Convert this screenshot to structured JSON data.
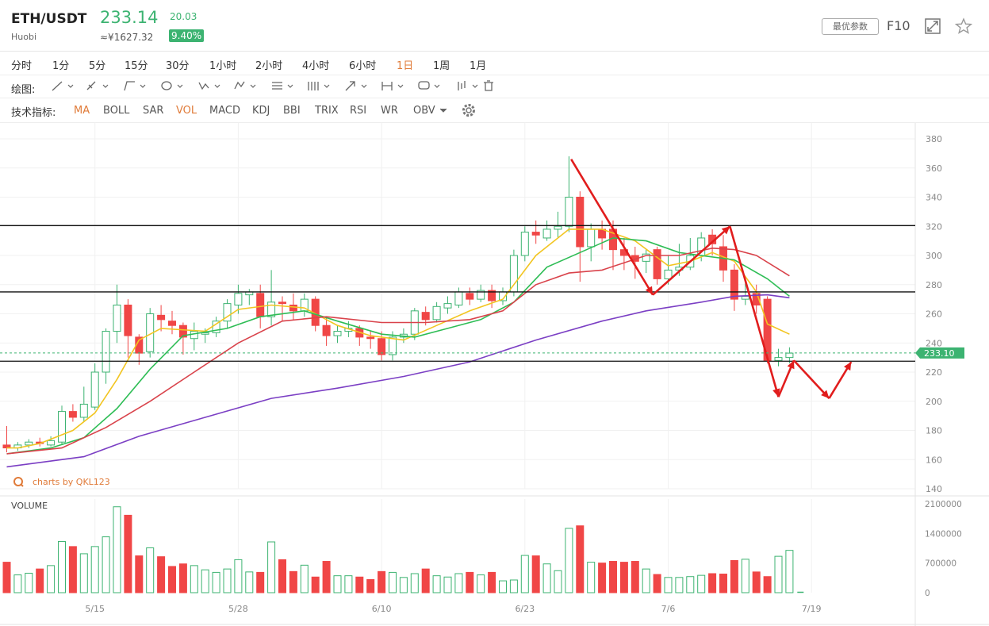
{
  "header": {
    "pair": "ETH/USDT",
    "exchange": "Huobi",
    "price": "233.14",
    "cny": "≈¥1627.32",
    "change": "20.03",
    "change_pct": "9.40%",
    "params_button": "最优参数",
    "f10": "F10",
    "expand_icon": "expand-icon",
    "star_icon": "star-icon"
  },
  "periods": [
    "分时",
    "1分",
    "5分",
    "15分",
    "30分",
    "1小时",
    "2小时",
    "4小时",
    "6小时",
    "1日",
    "1周",
    "1月"
  ],
  "active_period": "1日",
  "drawing": {
    "label": "绘图:",
    "tools": [
      "line-tool-icon",
      "brush-tool-icon",
      "shape-tool-icon",
      "circle-tool-icon",
      "wave-tool-icon",
      "pattern-tool-icon",
      "fib-tool-icon",
      "channel-tool-icon",
      "arrow-tool-icon",
      "range-tool-icon",
      "comment-tool-icon",
      "candles-tool-icon",
      "trash-icon"
    ]
  },
  "indicators": {
    "label": "技术指标:",
    "items": [
      "MA",
      "BOLL",
      "SAR",
      "VOL",
      "MACD",
      "KDJ",
      "BBI",
      "TRIX",
      "RSI",
      "WR",
      "OBV"
    ],
    "active": [
      "MA",
      "VOL"
    ],
    "settings_icon": "gear-icon"
  },
  "chart_data": {
    "type": "candlestick",
    "price_axis": {
      "ticks": [
        "380",
        "360",
        "340",
        "320",
        "300",
        "280",
        "260",
        "240",
        "220",
        "200",
        "180",
        "160",
        "140"
      ],
      "range": [
        140,
        380
      ]
    },
    "volume_label": "VOLUME",
    "volume_axis": {
      "ticks": [
        "2100000",
        "1400000",
        "700000",
        "0"
      ],
      "range": [
        0,
        2100000
      ]
    },
    "x_ticks": [
      {
        "label": "5/15",
        "index": 8
      },
      {
        "label": "5/28",
        "index": 21
      },
      {
        "label": "6/10",
        "index": 34
      },
      {
        "label": "6/23",
        "index": 47
      },
      {
        "label": "7/6",
        "index": 60
      },
      {
        "label": "7/19",
        "index": 73
      }
    ],
    "current_price_label": "233.10",
    "current_price": 233.1,
    "watermark": "charts by QKL123",
    "candles": [
      [
        170,
        168,
        183,
        165
      ],
      [
        168,
        170,
        172,
        166
      ],
      [
        170,
        172,
        174,
        168
      ],
      [
        172,
        171,
        175,
        169
      ],
      [
        170,
        173,
        176,
        169
      ],
      [
        172,
        193,
        197,
        170
      ],
      [
        193,
        189,
        198,
        186
      ],
      [
        189,
        198,
        210,
        186
      ],
      [
        196,
        220,
        226,
        194
      ],
      [
        220,
        248,
        250,
        212
      ],
      [
        248,
        266,
        280,
        240
      ],
      [
        266,
        245,
        270,
        230
      ],
      [
        244,
        233,
        246,
        225
      ],
      [
        234,
        260,
        264,
        230
      ],
      [
        259,
        256,
        266,
        248
      ],
      [
        255,
        252,
        262,
        246
      ],
      [
        252,
        244,
        254,
        232
      ],
      [
        243,
        248,
        254,
        235
      ],
      [
        246,
        247,
        250,
        240
      ],
      [
        247,
        255,
        258,
        244
      ],
      [
        255,
        267,
        270,
        250
      ],
      [
        266,
        274,
        280,
        260
      ],
      [
        273,
        275,
        277,
        266
      ],
      [
        274,
        258,
        280,
        250
      ],
      [
        258,
        268,
        290,
        252
      ],
      [
        268,
        267,
        272,
        255
      ],
      [
        266,
        262,
        274,
        256
      ],
      [
        262,
        270,
        274,
        258
      ],
      [
        270,
        252,
        272,
        248
      ],
      [
        252,
        245,
        258,
        238
      ],
      [
        245,
        248,
        252,
        240
      ],
      [
        248,
        250,
        255,
        244
      ],
      [
        250,
        244,
        252,
        238
      ],
      [
        244,
        243,
        248,
        236
      ],
      [
        243,
        232,
        248,
        228
      ],
      [
        232,
        244,
        248,
        228
      ],
      [
        244,
        246,
        250,
        240
      ],
      [
        246,
        262,
        264,
        242
      ],
      [
        261,
        256,
        265,
        252
      ],
      [
        256,
        265,
        268,
        254
      ],
      [
        264,
        267,
        272,
        260
      ],
      [
        266,
        275,
        278,
        264
      ],
      [
        274,
        270,
        278,
        266
      ],
      [
        270,
        276,
        280,
        268
      ],
      [
        276,
        269,
        280,
        264
      ],
      [
        269,
        275,
        278,
        266
      ],
      [
        275,
        300,
        304,
        272
      ],
      [
        300,
        316,
        320,
        296
      ],
      [
        316,
        314,
        324,
        308
      ],
      [
        312,
        318,
        324,
        310
      ],
      [
        318,
        320,
        330,
        312
      ],
      [
        320,
        340,
        368,
        316
      ],
      [
        340,
        306,
        344,
        282
      ],
      [
        306,
        318,
        322,
        296
      ],
      [
        318,
        312,
        324,
        304
      ],
      [
        318,
        304,
        324,
        290
      ],
      [
        304,
        300,
        312,
        290
      ],
      [
        300,
        296,
        306,
        284
      ],
      [
        296,
        301,
        304,
        288
      ],
      [
        304,
        284,
        306,
        280
      ],
      [
        284,
        290,
        300,
        280
      ],
      [
        290,
        292,
        308,
        286
      ],
      [
        292,
        300,
        312,
        290
      ],
      [
        300,
        312,
        316,
        296
      ],
      [
        314,
        308,
        318,
        300
      ],
      [
        306,
        290,
        314,
        282
      ],
      [
        290,
        270,
        294,
        262
      ],
      [
        270,
        272,
        282,
        266
      ],
      [
        274,
        266,
        280,
        260
      ],
      [
        270,
        228,
        272,
        226
      ],
      [
        228,
        230,
        236,
        224
      ],
      [
        230,
        233,
        237,
        226
      ]
    ],
    "volumes": [
      720000,
      420000,
      460000,
      560000,
      640000,
      1210000,
      1090000,
      920000,
      1090000,
      1320000,
      2030000,
      1830000,
      870000,
      1060000,
      850000,
      620000,
      680000,
      640000,
      540000,
      480000,
      560000,
      780000,
      490000,
      480000,
      1200000,
      780000,
      500000,
      650000,
      370000,
      740000,
      400000,
      400000,
      370000,
      310000,
      500000,
      480000,
      360000,
      450000,
      560000,
      400000,
      370000,
      450000,
      480000,
      420000,
      480000,
      280000,
      300000,
      880000,
      870000,
      680000,
      520000,
      1520000,
      1580000,
      720000,
      700000,
      740000,
      720000,
      740000,
      560000,
      430000,
      360000,
      360000,
      380000,
      410000,
      450000,
      440000,
      760000,
      790000,
      490000,
      380000,
      860000,
      1000000
    ],
    "ma": [
      {
        "name": "MA5",
        "color": "#f2c521",
        "values": [
          [
            0,
            168
          ],
          [
            1,
            168
          ],
          [
            3,
            171
          ],
          [
            6,
            180
          ],
          [
            8,
            192
          ],
          [
            10,
            215
          ],
          [
            12,
            242
          ],
          [
            14,
            250
          ],
          [
            18,
            248
          ],
          [
            21,
            263
          ],
          [
            24,
            266
          ],
          [
            27,
            264
          ],
          [
            30,
            252
          ],
          [
            33,
            245
          ],
          [
            36,
            242
          ],
          [
            39,
            252
          ],
          [
            42,
            262
          ],
          [
            45,
            270
          ],
          [
            48,
            300
          ],
          [
            51,
            318
          ],
          [
            54,
            318
          ],
          [
            57,
            310
          ],
          [
            60,
            293
          ],
          [
            62,
            296
          ],
          [
            64,
            302
          ],
          [
            66,
            296
          ],
          [
            68,
            275
          ],
          [
            69,
            253
          ],
          [
            71,
            246
          ]
        ]
      },
      {
        "name": "MA10",
        "color": "#2ebd55",
        "values": [
          [
            0,
            164
          ],
          [
            4,
            168
          ],
          [
            7,
            175
          ],
          [
            10,
            195
          ],
          [
            13,
            222
          ],
          [
            16,
            245
          ],
          [
            20,
            250
          ],
          [
            23,
            258
          ],
          [
            27,
            262
          ],
          [
            30,
            255
          ],
          [
            34,
            246
          ],
          [
            37,
            244
          ],
          [
            40,
            250
          ],
          [
            43,
            256
          ],
          [
            46,
            268
          ],
          [
            49,
            292
          ],
          [
            52,
            302
          ],
          [
            55,
            312
          ],
          [
            58,
            310
          ],
          [
            61,
            302
          ],
          [
            63,
            300
          ],
          [
            66,
            297
          ],
          [
            69,
            284
          ],
          [
            71,
            272
          ]
        ]
      },
      {
        "name": "MA20",
        "color": "#d9434b",
        "values": [
          [
            0,
            164
          ],
          [
            5,
            168
          ],
          [
            9,
            182
          ],
          [
            13,
            200
          ],
          [
            17,
            220
          ],
          [
            21,
            240
          ],
          [
            25,
            255
          ],
          [
            29,
            258
          ],
          [
            34,
            254
          ],
          [
            38,
            254
          ],
          [
            42,
            256
          ],
          [
            45,
            262
          ],
          [
            48,
            280
          ],
          [
            51,
            288
          ],
          [
            54,
            290
          ],
          [
            58,
            300
          ],
          [
            61,
            300
          ],
          [
            64,
            305
          ],
          [
            66,
            304
          ],
          [
            68,
            300
          ],
          [
            71,
            286
          ]
        ]
      },
      {
        "name": "MA60",
        "color": "#7b3fc4",
        "values": [
          [
            0,
            155
          ],
          [
            7,
            162
          ],
          [
            12,
            176
          ],
          [
            18,
            189
          ],
          [
            24,
            202
          ],
          [
            30,
            209
          ],
          [
            36,
            217
          ],
          [
            42,
            227
          ],
          [
            48,
            242
          ],
          [
            54,
            255
          ],
          [
            58,
            262
          ],
          [
            63,
            268
          ],
          [
            66,
            272
          ],
          [
            69,
            273
          ],
          [
            71,
            271
          ]
        ]
      }
    ],
    "annotations": {
      "horizontal_lines": [
        320.5,
        275,
        227.5
      ],
      "arrows": [
        [
          [
            51.2,
            366
          ],
          [
            58.6,
            273
          ]
        ],
        [
          [
            58.6,
            273
          ],
          [
            65.6,
            320
          ]
        ],
        [
          [
            65.6,
            320
          ],
          [
            70,
            203
          ]
        ],
        [
          [
            70,
            203
          ],
          [
            71.4,
            228
          ]
        ],
        [
          [
            71.4,
            228
          ],
          [
            74.6,
            202
          ]
        ],
        [
          [
            74.6,
            202
          ],
          [
            76.6,
            227
          ]
        ]
      ]
    }
  }
}
